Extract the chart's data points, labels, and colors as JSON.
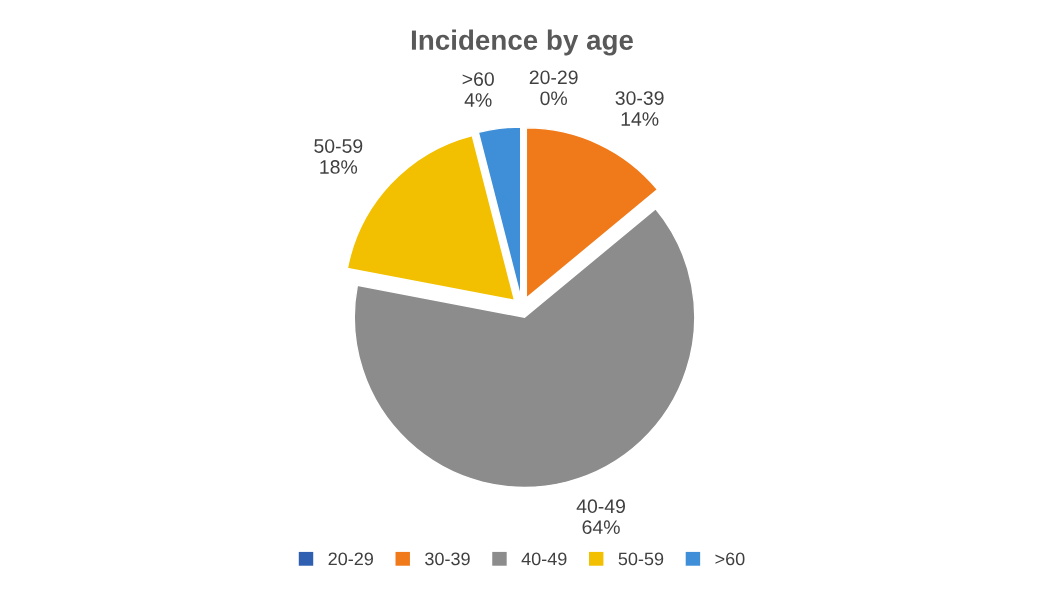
{
  "chart_data": {
    "type": "pie",
    "title": "Incidence by age",
    "categories": [
      "20-29",
      "30-39",
      "40-49",
      "50-59",
      ">60"
    ],
    "values": [
      0,
      14,
      64,
      18,
      4
    ],
    "value_labels": [
      "0%",
      "14%",
      "64%",
      "18%",
      "4%"
    ],
    "colors": [
      "#2f5fb0",
      "#f07a1a",
      "#8c8c8c",
      "#f2c000",
      "#3f8fd8"
    ],
    "legend": "bottom"
  }
}
